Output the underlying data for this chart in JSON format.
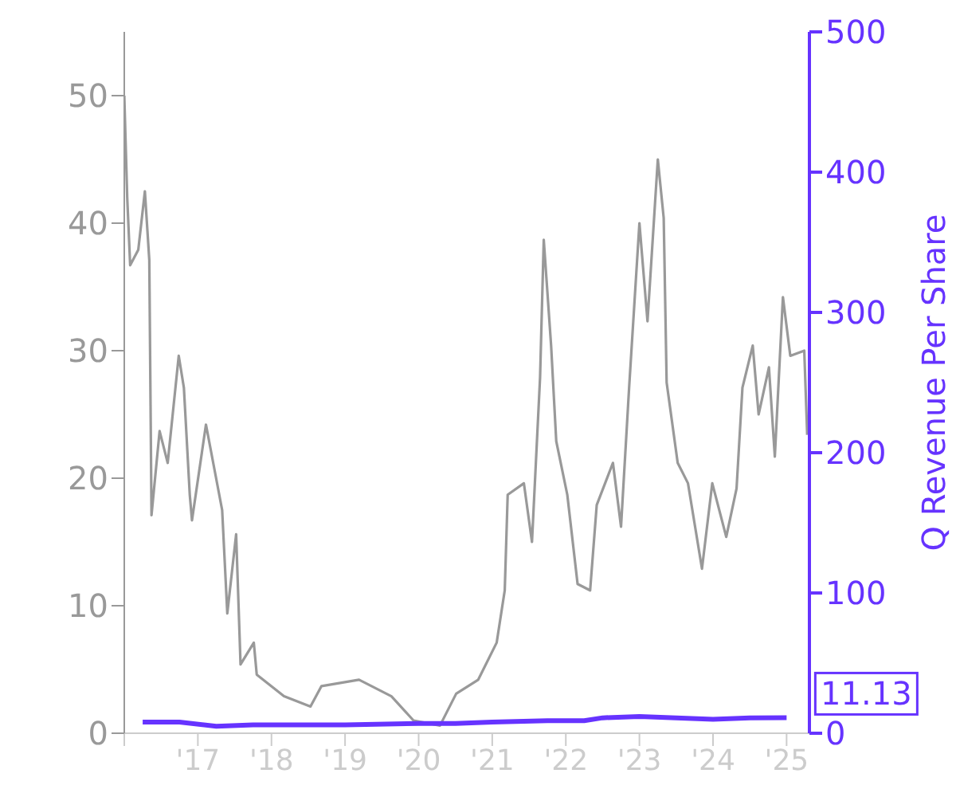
{
  "chart_data": {
    "type": "line",
    "y2label": "Q Revenue Per Share",
    "xlim": [
      2016,
      2025.31
    ],
    "xticks": [
      {
        "value": 2016,
        "label": null
      },
      {
        "value": 2017,
        "label": "'17"
      },
      {
        "value": 2018,
        "label": "'18"
      },
      {
        "value": 2019,
        "label": "'19"
      },
      {
        "value": 2020,
        "label": "'20"
      },
      {
        "value": 2021,
        "label": "'21"
      },
      {
        "value": 2022,
        "label": "'22"
      },
      {
        "value": 2023,
        "label": "'23"
      },
      {
        "value": 2024,
        "label": "'24"
      },
      {
        "value": 2025,
        "label": "'25"
      }
    ],
    "ylim": [
      0,
      55
    ],
    "yticks": [
      0,
      10,
      20,
      30,
      40,
      50
    ],
    "y2lim": [
      0,
      500
    ],
    "y2ticks": [
      0,
      100,
      200,
      300,
      400,
      500
    ],
    "grid": false,
    "legend": false,
    "marker": "none",
    "line_style": "solid",
    "series": [
      {
        "color": "#999999",
        "x": [
          2016.0,
          2016.04,
          2016.08,
          2016.19,
          2016.28,
          2016.34,
          2016.37,
          2016.48,
          2016.59,
          2016.74,
          2016.81,
          2016.89,
          2016.92,
          2017.11,
          2017.33,
          2017.4,
          2017.52,
          2017.58,
          2017.76,
          2017.8,
          2018.17,
          2018.53,
          2018.68,
          2019.19,
          2019.63,
          2019.93,
          2020.29,
          2020.51,
          2020.81,
          2021.06,
          2021.17,
          2021.21,
          2021.43,
          2021.54,
          2021.65,
          2021.7,
          2021.8,
          2021.87,
          2022.02,
          2022.16,
          2022.33,
          2022.42,
          2022.64,
          2022.75,
          2022.86,
          2023.0,
          2023.11,
          2023.25,
          2023.33,
          2023.37,
          2023.52,
          2023.66,
          2023.85,
          2023.99,
          2024.18,
          2024.32,
          2024.4,
          2024.54,
          2024.62,
          2024.76,
          2024.84,
          2024.95,
          2025.05,
          2025.24,
          2025.28
        ],
        "values": [
          50,
          42,
          36.7,
          37.9,
          42.5,
          37.1,
          17.1,
          23.7,
          21.2,
          29.6,
          27.1,
          18.7,
          16.7,
          24.2,
          17.5,
          9.4,
          15.6,
          5.4,
          7.1,
          4.6,
          2.9,
          2.1,
          3.7,
          4.2,
          2.9,
          1.0,
          0.6,
          3.1,
          4.2,
          7.1,
          11.2,
          18.7,
          19.6,
          15,
          27.9,
          38.7,
          30.4,
          22.9,
          18.7,
          11.7,
          11.2,
          17.9,
          21.2,
          16.2,
          27.1,
          40,
          32.3,
          45,
          40.4,
          27.5,
          21.2,
          19.6,
          12.9,
          19.6,
          15.4,
          19.2,
          27.1,
          30.4,
          25,
          28.7,
          21.7,
          34.2,
          29.6,
          30,
          23.4
        ]
      },
      {
        "color": "#6633ff",
        "axis": "y2",
        "x": [
          2016.25,
          2016.75,
          2017.25,
          2017.75,
          2018.5,
          2019.0,
          2020.0,
          2020.5,
          2021.0,
          2021.75,
          2022.25,
          2022.5,
          2023.0,
          2023.5,
          2024.0,
          2024.5,
          2025.0
        ],
        "values": [
          8,
          8,
          5,
          6,
          6,
          6,
          7,
          7,
          8,
          9,
          9,
          11,
          12,
          11,
          10,
          11,
          11.13
        ],
        "value_labels": [
          null,
          null,
          null,
          null,
          null,
          null,
          null,
          null,
          null,
          null,
          null,
          null,
          null,
          null,
          null,
          null,
          "11.13"
        ]
      }
    ]
  }
}
